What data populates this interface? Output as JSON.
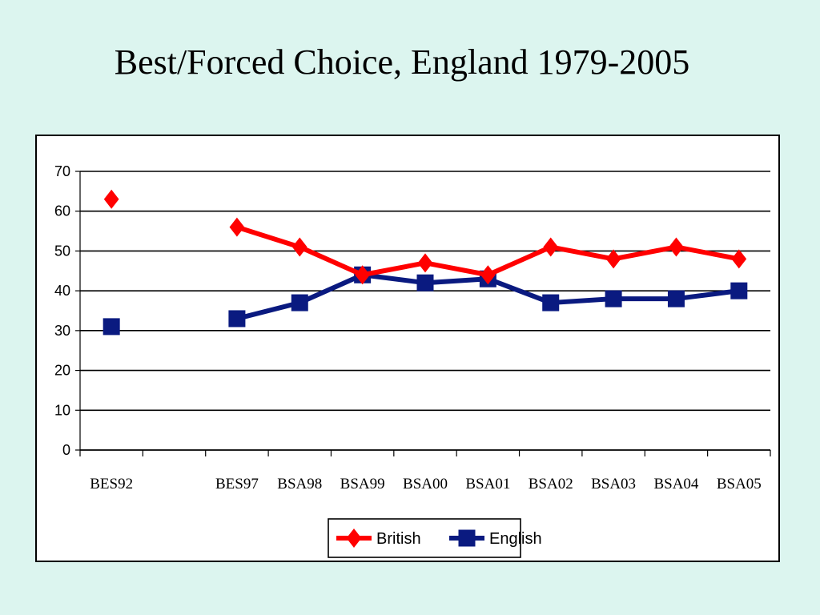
{
  "slide": {
    "title": "Best/Forced Choice, England 1979-2005"
  },
  "chart_data": {
    "type": "line",
    "categories": [
      "BES92",
      "",
      "BES97",
      "BSA98",
      "BSA99",
      "BSA00",
      "BSA01",
      "BSA02",
      "BSA03",
      "BSA04",
      "BSA05"
    ],
    "ylim": [
      0,
      70
    ],
    "yticks": [
      0,
      10,
      20,
      30,
      40,
      50,
      60,
      70
    ],
    "grid": true,
    "legend": "bottom-center",
    "series": [
      {
        "name": "British",
        "color": "#ff0000",
        "marker": "diamond",
        "values": [
          63,
          null,
          56,
          51,
          44,
          47,
          44,
          51,
          48,
          51,
          48
        ]
      },
      {
        "name": "English",
        "color": "#0a1a80",
        "marker": "square",
        "values": [
          31,
          null,
          33,
          37,
          44,
          42,
          43,
          37,
          38,
          38,
          40
        ]
      }
    ]
  }
}
